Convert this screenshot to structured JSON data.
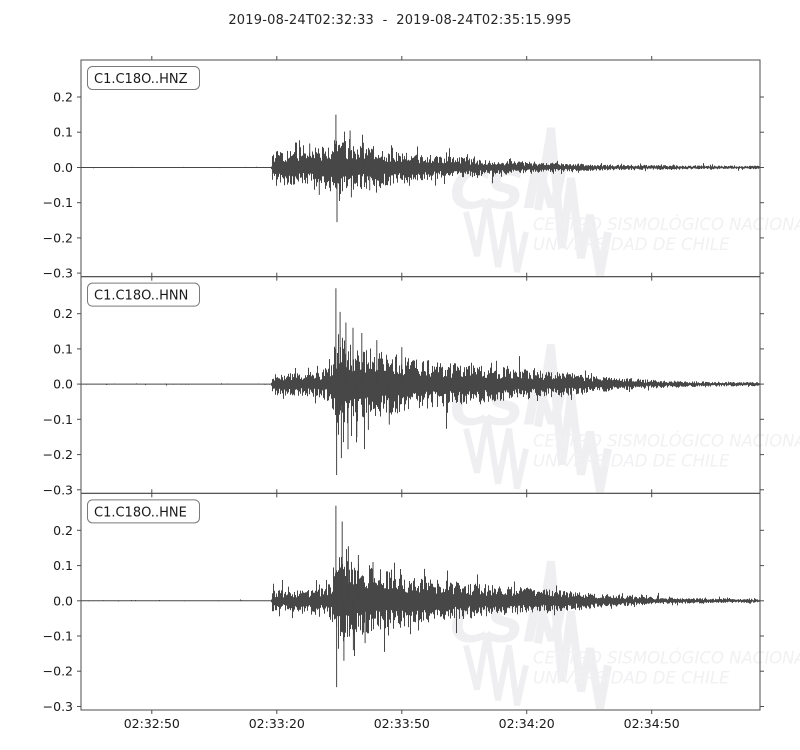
{
  "figure": {
    "title": "2019-08-24T02:32:33  -  2019-08-24T02:35:15.995",
    "background": "#ffffff",
    "trace_color": "#474747",
    "axis_color": "#4d4d4d",
    "tick_label_color": "#1a1a1a",
    "watermark": {
      "acronym": "CSN",
      "line1": "CENTRO SISMOLÓGICO NACIONAL",
      "line2": "UNIVERSIDAD DE CHILE",
      "color_big": "#efeff1",
      "color_text": "#f1f1f3"
    }
  },
  "chart_data": {
    "type": "line",
    "subtype": "seismogram-waveform",
    "title": "2019-08-24T02:32:33  -  2019-08-24T02:35:15.995",
    "x_start": "2019-08-24T02:32:33",
    "x_end": "2019-08-24T02:35:15.995",
    "duration_s": 162.995,
    "xlabel": "",
    "ylabel": "",
    "grid": false,
    "legend_position": "station label box upper-left of each subplot",
    "ylim": [
      -0.31,
      0.305
    ],
    "yticks": {
      "values": [
        0.2,
        0.1,
        0.0,
        -0.1,
        -0.2,
        -0.3
      ],
      "labels": [
        "0.2",
        "0.1",
        "0.0",
        "−0.1",
        "−0.2",
        "−0.3"
      ]
    },
    "xticks": [
      {
        "t": 17,
        "label": "02:32:50"
      },
      {
        "t": 47,
        "label": "02:33:20"
      },
      {
        "t": 77,
        "label": "02:33:50"
      },
      {
        "t": 107,
        "label": "02:34:20"
      },
      {
        "t": 137,
        "label": "02:34:50"
      }
    ],
    "series": [
      {
        "name": "C1.C18O..HNZ",
        "onset_s": 45.8,
        "peak_amplitude": 0.15,
        "envelope": [
          [
            0,
            0.0012
          ],
          [
            45.7,
            0.0012
          ],
          [
            45.9,
            0.048
          ],
          [
            47,
            0.056
          ],
          [
            50,
            0.05
          ],
          [
            53,
            0.048
          ],
          [
            56,
            0.052
          ],
          [
            58,
            0.06
          ],
          [
            60,
            0.068
          ],
          [
            61.2,
            0.08
          ],
          [
            62,
            0.085
          ],
          [
            63,
            0.078
          ],
          [
            65,
            0.068
          ],
          [
            68,
            0.06
          ],
          [
            71,
            0.055
          ],
          [
            74,
            0.05
          ],
          [
            78,
            0.045
          ],
          [
            82,
            0.04
          ],
          [
            86,
            0.035
          ],
          [
            90,
            0.03
          ],
          [
            95,
            0.025
          ],
          [
            100,
            0.021
          ],
          [
            105,
            0.018
          ],
          [
            110,
            0.015
          ],
          [
            115,
            0.013
          ],
          [
            120,
            0.011
          ],
          [
            126,
            0.009
          ],
          [
            132,
            0.008
          ],
          [
            140,
            0.0065
          ],
          [
            150,
            0.0055
          ],
          [
            163,
            0.005
          ]
        ],
        "spikes": [
          [
            61.2,
            0.15
          ],
          [
            61.45,
            -0.155
          ],
          [
            64.6,
            0.105
          ],
          [
            64.9,
            -0.085
          ],
          [
            57.2,
            -0.078
          ],
          [
            54.9,
            0.068
          ],
          [
            67.8,
            0.07
          ],
          [
            69.3,
            -0.065
          ]
        ]
      },
      {
        "name": "C1.C18O..HNN",
        "onset_s": 45.8,
        "peak_amplitude": 0.27,
        "envelope": [
          [
            0,
            0.0015
          ],
          [
            45.7,
            0.0015
          ],
          [
            45.9,
            0.03
          ],
          [
            48,
            0.034
          ],
          [
            52,
            0.033
          ],
          [
            55,
            0.035
          ],
          [
            58,
            0.04
          ],
          [
            60,
            0.055
          ],
          [
            61,
            0.1
          ],
          [
            61.5,
            0.155
          ],
          [
            62.5,
            0.145
          ],
          [
            64,
            0.125
          ],
          [
            66,
            0.115
          ],
          [
            68,
            0.105
          ],
          [
            70,
            0.1
          ],
          [
            73,
            0.092
          ],
          [
            76,
            0.085
          ],
          [
            80,
            0.075
          ],
          [
            84,
            0.068
          ],
          [
            88,
            0.062
          ],
          [
            92,
            0.057
          ],
          [
            96,
            0.053
          ],
          [
            100,
            0.05
          ],
          [
            104,
            0.046
          ],
          [
            108,
            0.042
          ],
          [
            112,
            0.038
          ],
          [
            116,
            0.034
          ],
          [
            120,
            0.029
          ],
          [
            124,
            0.024
          ],
          [
            128,
            0.02
          ],
          [
            132,
            0.016
          ],
          [
            136,
            0.013
          ],
          [
            140,
            0.011
          ],
          [
            145,
            0.009
          ],
          [
            150,
            0.0075
          ],
          [
            156,
            0.0065
          ],
          [
            163,
            0.006
          ]
        ],
        "spikes": [
          [
            61.2,
            0.272
          ],
          [
            61.35,
            -0.258
          ],
          [
            62.2,
            0.205
          ],
          [
            62.5,
            -0.21
          ],
          [
            63.6,
            0.175
          ],
          [
            64.1,
            -0.185
          ],
          [
            65.3,
            0.16
          ],
          [
            66.2,
            -0.15
          ],
          [
            67.4,
            0.145
          ],
          [
            69,
            -0.13
          ],
          [
            71,
            0.125
          ],
          [
            74,
            -0.115
          ],
          [
            77,
            0.105
          ]
        ]
      },
      {
        "name": "C1.C18O..HNE",
        "onset_s": 45.8,
        "peak_amplitude": 0.27,
        "envelope": [
          [
            0,
            0.0015
          ],
          [
            45.7,
            0.0015
          ],
          [
            45.9,
            0.03
          ],
          [
            48,
            0.032
          ],
          [
            52,
            0.031
          ],
          [
            55,
            0.033
          ],
          [
            58,
            0.038
          ],
          [
            60,
            0.05
          ],
          [
            61,
            0.09
          ],
          [
            61.5,
            0.13
          ],
          [
            62.5,
            0.125
          ],
          [
            64,
            0.115
          ],
          [
            66,
            0.108
          ],
          [
            68,
            0.1
          ],
          [
            71,
            0.092
          ],
          [
            74,
            0.085
          ],
          [
            78,
            0.078
          ],
          [
            82,
            0.07
          ],
          [
            86,
            0.063
          ],
          [
            90,
            0.057
          ],
          [
            94,
            0.051
          ],
          [
            98,
            0.047
          ],
          [
            102,
            0.043
          ],
          [
            106,
            0.039
          ],
          [
            110,
            0.035
          ],
          [
            114,
            0.031
          ],
          [
            118,
            0.027
          ],
          [
            122,
            0.023
          ],
          [
            126,
            0.019
          ],
          [
            130,
            0.016
          ],
          [
            134,
            0.013
          ],
          [
            138,
            0.011
          ],
          [
            143,
            0.009
          ],
          [
            148,
            0.0075
          ],
          [
            154,
            0.0065
          ],
          [
            163,
            0.0055
          ]
        ],
        "spikes": [
          [
            61.2,
            0.27
          ],
          [
            61.35,
            -0.245
          ],
          [
            62.7,
            0.225
          ],
          [
            63.1,
            -0.17
          ],
          [
            64.2,
            0.155
          ],
          [
            65.4,
            -0.14
          ],
          [
            66.6,
            0.13
          ],
          [
            68.2,
            -0.12
          ],
          [
            70.1,
            0.11
          ]
        ]
      }
    ]
  }
}
